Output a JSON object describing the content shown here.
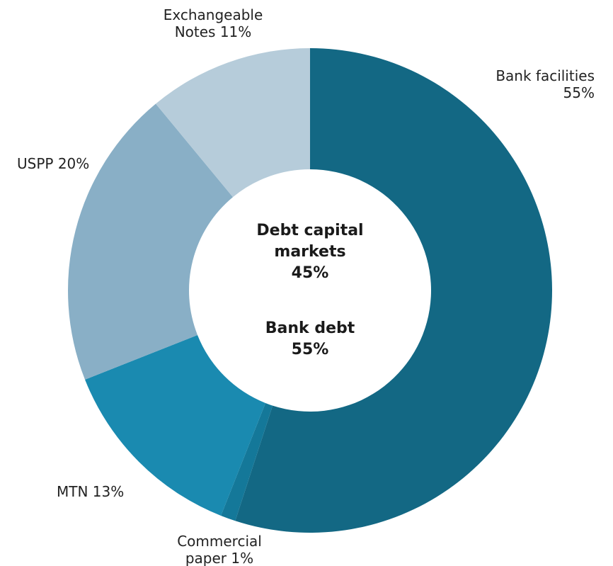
{
  "chart_data": {
    "type": "pie",
    "variant": "donut",
    "slices": [
      {
        "name": "Bank facilities",
        "value": 55,
        "color": "#136884",
        "label_lines": [
          "Bank facilities",
          "55%"
        ]
      },
      {
        "name": "Commercial paper",
        "value": 1,
        "color": "#147899",
        "label_lines": [
          "Commercial",
          "paper 1%"
        ]
      },
      {
        "name": "MTN",
        "value": 13,
        "color": "#1a8ab0",
        "label_lines": [
          "MTN 13%"
        ]
      },
      {
        "name": "USPP",
        "value": 20,
        "color": "#89afc6",
        "label_lines": [
          "USPP 20%"
        ]
      },
      {
        "name": "Exchangeable Notes",
        "value": 11,
        "color": "#b6ccda",
        "label_lines": [
          "Exchangeable",
          "Notes 11%"
        ]
      }
    ],
    "center": {
      "group1_lines": [
        "Debt capital",
        "markets",
        "45%"
      ],
      "group2_lines": [
        "Bank debt",
        "55%"
      ]
    }
  }
}
